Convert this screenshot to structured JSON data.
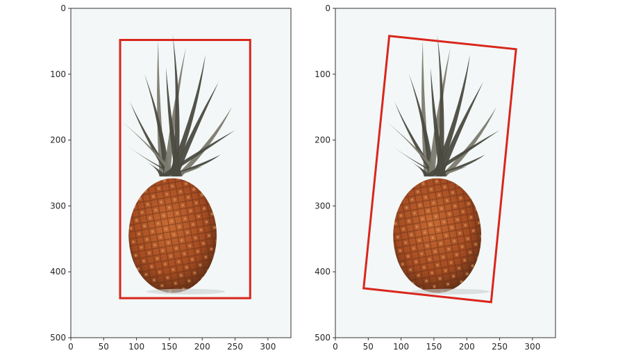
{
  "colors": {
    "background": "#ffffff",
    "image_background": "#f3f7f7",
    "box": "#d9261c",
    "axis": "#333333",
    "pineapple_body": "#b4562b",
    "pineapple_dark": "#6a3418",
    "leaves": "#4a4a40",
    "leaves_light": "#7c7a6e"
  },
  "chart_data": [
    {
      "type": "image",
      "xlim": [
        0,
        335
      ],
      "ylim": [
        500,
        0
      ],
      "x_ticks": [
        0,
        50,
        100,
        150,
        200,
        250,
        300
      ],
      "y_ticks": [
        0,
        100,
        200,
        300,
        400,
        500
      ],
      "bounding_box": {
        "kind": "axis-aligned",
        "corners": [
          [
            75,
            48
          ],
          [
            273,
            48
          ],
          [
            273,
            440
          ],
          [
            75,
            440
          ]
        ]
      }
    },
    {
      "type": "image",
      "xlim": [
        0,
        335
      ],
      "ylim": [
        500,
        0
      ],
      "x_ticks": [
        0,
        50,
        100,
        150,
        200,
        250,
        300
      ],
      "y_ticks": [
        0,
        100,
        200,
        300,
        400,
        500
      ],
      "bounding_box": {
        "kind": "rotated",
        "corners": [
          [
            82,
            42
          ],
          [
            275,
            62
          ],
          [
            237,
            446
          ],
          [
            43,
            425
          ]
        ]
      }
    }
  ]
}
